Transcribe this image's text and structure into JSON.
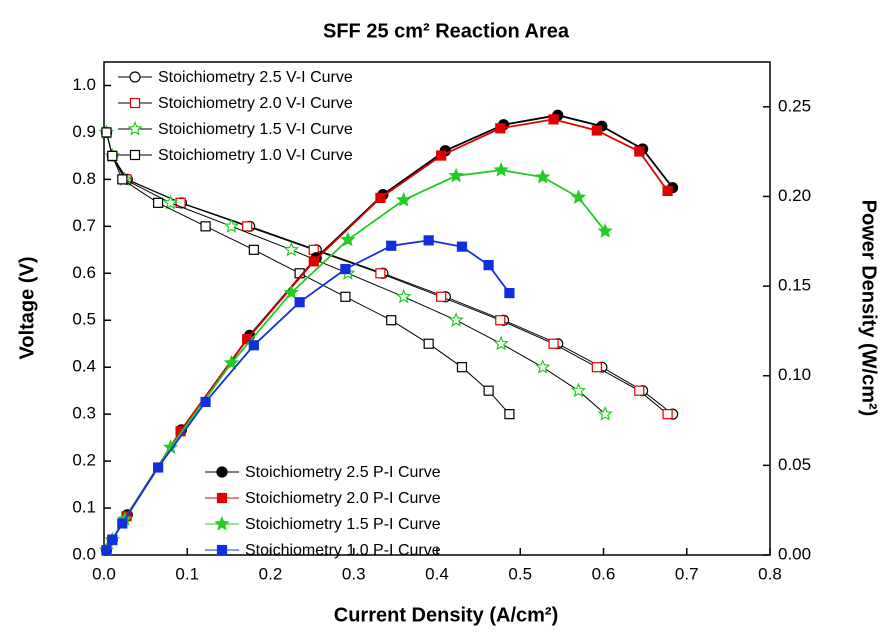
{
  "chart_data": {
    "type": "line",
    "title": "SFF 25 cm² Reaction Area",
    "x_label": "Current Density (A/cm²)",
    "y_label": "Voltage (V)",
    "y2_label": "Power Density (W/cm²)",
    "xlim": [
      0,
      0.8
    ],
    "xticks": [
      {
        "value": 0,
        "label": "0.0"
      },
      0.1,
      0.2,
      0.3,
      0.4,
      0.5,
      0.6,
      0.7,
      0.8
    ],
    "ylim": [
      0,
      1.05
    ],
    "yticks": [
      {
        "value": 0,
        "label": "0.0"
      },
      0.1,
      0.2,
      0.3,
      0.4,
      0.5,
      0.6,
      0.7,
      0.8,
      0.9,
      {
        "value": 1,
        "label": "1.0"
      }
    ],
    "y2lim": [
      0,
      0.275
    ],
    "y2ticks": [
      {
        "value": 0,
        "label": "0.00"
      },
      0.05,
      {
        "value": 0.1,
        "label": "0.10"
      },
      0.15,
      {
        "value": 0.2,
        "label": "0.20"
      },
      0.25
    ],
    "series": [
      {
        "name": "Stoichiometry 2.5 V-I Curve",
        "color": "#000000",
        "marker": "circle",
        "filled": false,
        "axis": "y",
        "x": [
          0.003,
          0.01,
          0.028,
          0.093,
          0.175,
          0.255,
          0.335,
          0.41,
          0.48,
          0.545,
          0.598,
          0.647,
          0.683
        ],
        "values": [
          0.9,
          0.85,
          0.8,
          0.75,
          0.7,
          0.65,
          0.6,
          0.55,
          0.5,
          0.45,
          0.4,
          0.35,
          0.3
        ]
      },
      {
        "name": "Stoichiometry 2.0 V-I Curve",
        "color": "#e00000",
        "marker": "square",
        "filled": false,
        "axis": "y",
        "x": [
          0.003,
          0.01,
          0.027,
          0.092,
          0.172,
          0.252,
          0.332,
          0.405,
          0.476,
          0.54,
          0.592,
          0.643,
          0.677
        ],
        "values": [
          0.9,
          0.85,
          0.8,
          0.75,
          0.7,
          0.65,
          0.6,
          0.55,
          0.5,
          0.45,
          0.4,
          0.35,
          0.3
        ]
      },
      {
        "name": "Stoichiometry 1.5 V-I Curve",
        "color": "#22cc22",
        "marker": "star",
        "filled": false,
        "axis": "y",
        "x": [
          0.003,
          0.01,
          0.025,
          0.08,
          0.153,
          0.225,
          0.293,
          0.36,
          0.423,
          0.477,
          0.527,
          0.57,
          0.602
        ],
        "values": [
          0.9,
          0.85,
          0.8,
          0.75,
          0.7,
          0.65,
          0.6,
          0.55,
          0.5,
          0.45,
          0.4,
          0.35,
          0.3
        ]
      },
      {
        "name": "Stoichiometry 1.0 V-I Curve",
        "color": "#000000",
        "marker": "square",
        "filled": false,
        "axis": "y",
        "x": [
          0.003,
          0.01,
          0.022,
          0.065,
          0.122,
          0.18,
          0.235,
          0.29,
          0.345,
          0.39,
          0.43,
          0.462,
          0.487
        ],
        "values": [
          0.9,
          0.85,
          0.8,
          0.75,
          0.7,
          0.65,
          0.6,
          0.55,
          0.5,
          0.45,
          0.4,
          0.35,
          0.3
        ]
      },
      {
        "name": "Stoichiometry 2.5 P-I Curve",
        "color": "#000000",
        "marker": "circle",
        "filled": true,
        "axis": "y2",
        "x": [
          0.003,
          0.01,
          0.028,
          0.093,
          0.175,
          0.255,
          0.335,
          0.41,
          0.48,
          0.545,
          0.598,
          0.647,
          0.683
        ],
        "values": [
          0.0027,
          0.0085,
          0.0224,
          0.0698,
          0.1225,
          0.1658,
          0.201,
          0.2255,
          0.24,
          0.2453,
          0.2392,
          0.2265,
          0.2049
        ]
      },
      {
        "name": "Stoichiometry 2.0 P-I Curve",
        "color": "#e00000",
        "marker": "square",
        "filled": true,
        "axis": "y2",
        "x": [
          0.003,
          0.01,
          0.027,
          0.092,
          0.172,
          0.252,
          0.332,
          0.405,
          0.476,
          0.54,
          0.592,
          0.643,
          0.677
        ],
        "values": [
          0.0027,
          0.0085,
          0.0216,
          0.069,
          0.1204,
          0.1638,
          0.1992,
          0.2228,
          0.238,
          0.243,
          0.2368,
          0.2251,
          0.2031
        ]
      },
      {
        "name": "Stoichiometry 1.5 P-I Curve",
        "color": "#22cc22",
        "marker": "star",
        "filled": true,
        "axis": "y2",
        "x": [
          0.003,
          0.01,
          0.025,
          0.08,
          0.153,
          0.225,
          0.293,
          0.36,
          0.423,
          0.477,
          0.527,
          0.57,
          0.602
        ],
        "values": [
          0.0027,
          0.0085,
          0.02,
          0.06,
          0.1071,
          0.1463,
          0.1758,
          0.198,
          0.2115,
          0.2147,
          0.2108,
          0.1995,
          0.1806
        ]
      },
      {
        "name": "Stoichiometry 1.0 P-I Curve",
        "color": "#1030e0",
        "marker": "square",
        "filled": true,
        "axis": "y2",
        "x": [
          0.003,
          0.01,
          0.022,
          0.065,
          0.122,
          0.18,
          0.235,
          0.29,
          0.345,
          0.39,
          0.43,
          0.462,
          0.487
        ],
        "values": [
          0.0027,
          0.0085,
          0.0176,
          0.0488,
          0.0854,
          0.117,
          0.141,
          0.1595,
          0.1725,
          0.1755,
          0.172,
          0.1617,
          0.1461
        ]
      }
    ]
  }
}
